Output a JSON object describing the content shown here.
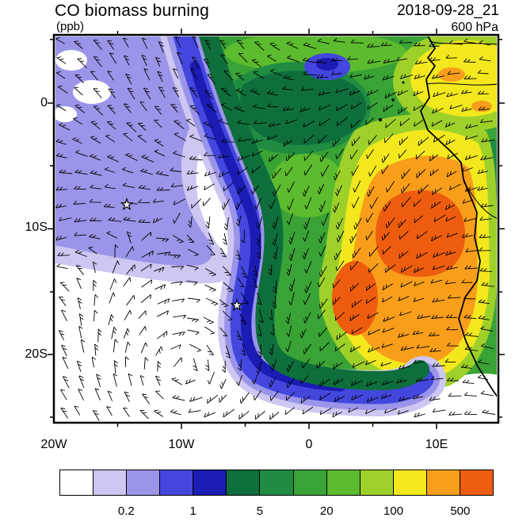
{
  "header": {
    "title": "CO biomass burning",
    "units_label": "(ppb)",
    "datetime_label": "2018-09-28_21",
    "level_label": "600 hPa"
  },
  "axes": {
    "y_tick_labels": [
      "0",
      "10S",
      "20S"
    ],
    "x_tick_labels": [
      "20W",
      "10W",
      "0",
      "10E"
    ]
  },
  "colorbar": {
    "cell_colors": [
      "#ffffff",
      "#cdc7f1",
      "#9b95e9",
      "#4347de",
      "#1a1cb4",
      "#0e6e3c",
      "#1f8c42",
      "#3aa336",
      "#5cbb2e",
      "#9ed02a",
      "#f2e81d",
      "#f89e1b",
      "#ee5d0f"
    ],
    "tick_labels": [
      "0.2",
      "1",
      "5",
      "20",
      "100",
      "500"
    ],
    "label_boundary_indices": [
      2,
      4,
      6,
      8,
      10,
      12
    ]
  },
  "chart_data": {
    "type": "heatmap",
    "subtype": "filled-contour map with wind barbs",
    "title": "CO biomass burning",
    "variable": "CO",
    "units": "ppb",
    "level": "600 hPa",
    "valid_time": "2018-09-28_21",
    "lon_range_deg": [
      -20,
      15
    ],
    "lat_range_deg": [
      -25.5,
      5.5
    ],
    "x_tick_lons": [
      -20,
      -10,
      0,
      10
    ],
    "x_tick_labels": [
      "20W",
      "10W",
      "0",
      "10E"
    ],
    "y_tick_lats": [
      0,
      -10,
      -20
    ],
    "y_tick_labels": [
      "0",
      "10S",
      "20S"
    ],
    "contour_levels_ppb": [
      0.1,
      0.2,
      0.5,
      1,
      2,
      5,
      10,
      20,
      50,
      100,
      200,
      500
    ],
    "labeled_levels_ppb": [
      0.2,
      1,
      5,
      20,
      100,
      500
    ],
    "palette_hex": [
      "#ffffff",
      "#cdc7f1",
      "#9b95e9",
      "#4347de",
      "#1a1cb4",
      "#0e6e3c",
      "#1f8c42",
      "#3aa336",
      "#5cbb2e",
      "#9ed02a",
      "#f2e81d",
      "#f89e1b",
      "#ee5d0f"
    ],
    "overlays": [
      "wind barbs",
      "coastline",
      "country borders"
    ],
    "markers": [
      {
        "type": "star",
        "approx_lon": -14.4,
        "approx_lat": -7.9
      },
      {
        "type": "star",
        "approx_lon": -5.7,
        "approx_lat": -16.0
      }
    ],
    "features": [
      "Very low CO (< 0.2 ppb, white) over the subtropical South Atlantic, lower-left quadrant, with anticyclonic wind-barb circulation",
      "Low-CO band (0.2-2 ppb, purple/blue) in the northwest and a narrow blue tongue curving south along ~6W then east toward the Angolan coast near 22S",
      "Moderate CO (5-20 ppb, greens) over the Gulf of Guinea and equatorial region",
      "High CO plume (100 - >500 ppb, yellow/orange) centered offshore and over Angola/Congo basin, ~0E-15E, 5S-20S",
      "Star markers near Ascension Island and St. Helena",
      "Small island dots (Annobon, Sao Tome, Principe) in the Gulf of Guinea"
    ]
  }
}
